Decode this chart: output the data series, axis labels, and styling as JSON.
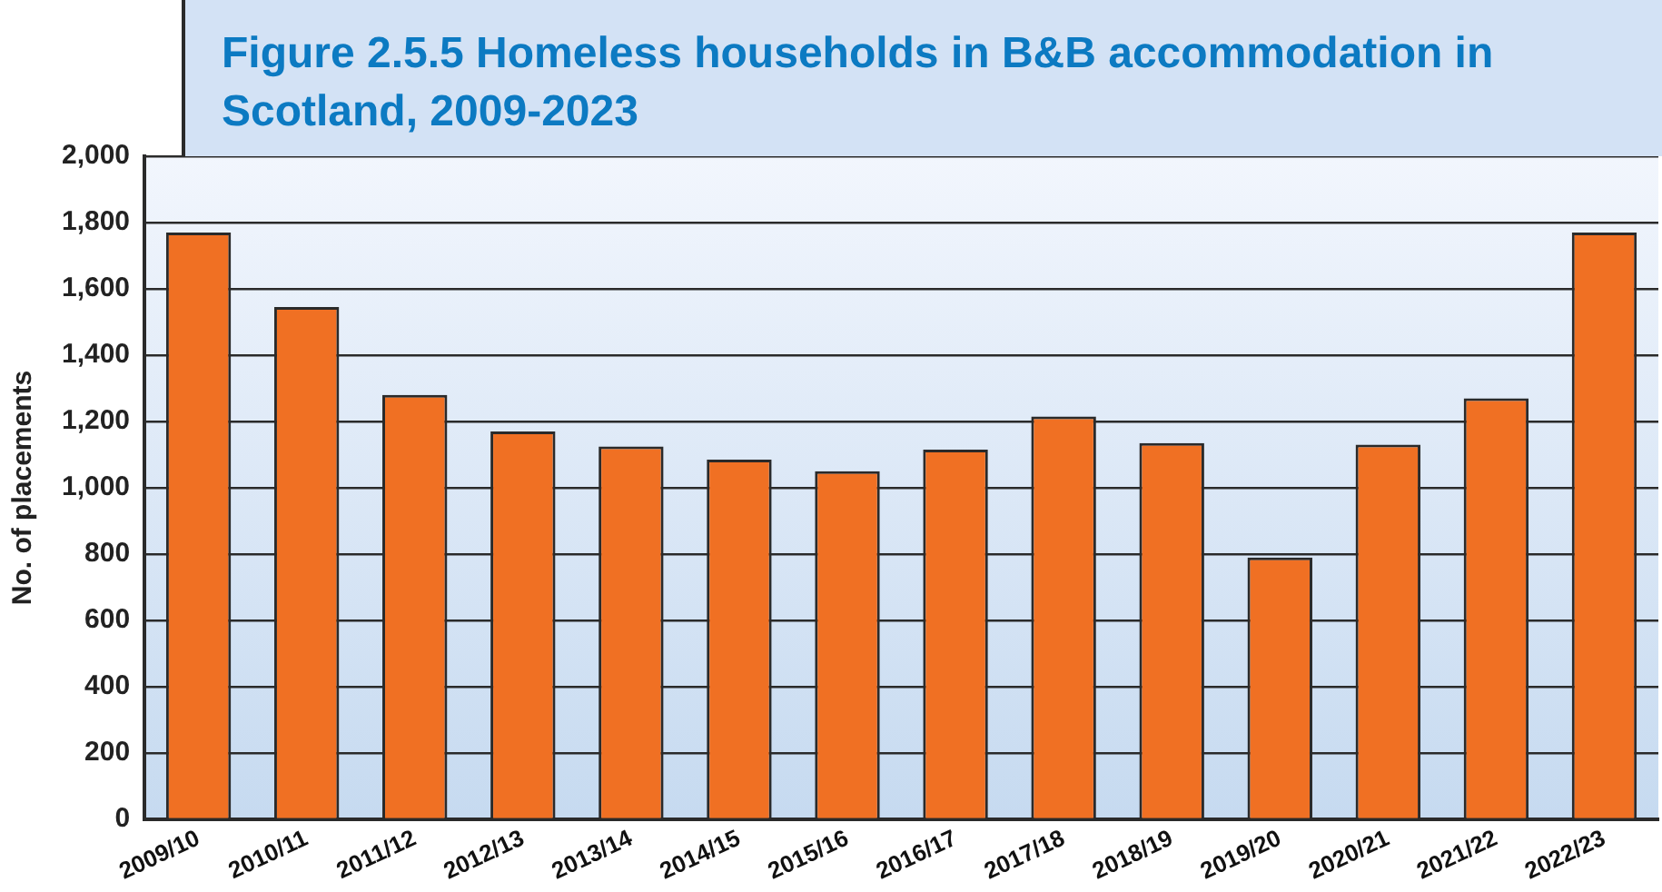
{
  "chart_data": {
    "type": "bar",
    "title": "Figure 2.5.5 Homeless households in B&B accommodation in Scotland, 2009-2023",
    "ylabel": "No. of placements",
    "categories": [
      "2009/10",
      "2010/11",
      "2011/12",
      "2012/13",
      "2013/14",
      "2014/15",
      "2015/16",
      "2016/17",
      "2017/18",
      "2018/19",
      "2019/20",
      "2020/21",
      "2021/22",
      "2022/23"
    ],
    "values": [
      1770,
      1545,
      1280,
      1170,
      1125,
      1085,
      1050,
      1115,
      1215,
      1135,
      790,
      1130,
      1270,
      1770
    ],
    "color": "#f07023",
    "ylim": [
      0,
      2000
    ],
    "yticks": [
      0,
      200,
      400,
      600,
      800,
      {
        "value": 1000,
        "label": "1,000"
      },
      {
        "value": 1200,
        "label": "1,200"
      },
      {
        "value": 1400,
        "label": "1,400"
      },
      {
        "value": 1600,
        "label": "1,600"
      },
      {
        "value": 1800,
        "label": "1,800"
      },
      {
        "value": 2000,
        "label": "2,000"
      }
    ],
    "grid": "y",
    "legend": false
  }
}
